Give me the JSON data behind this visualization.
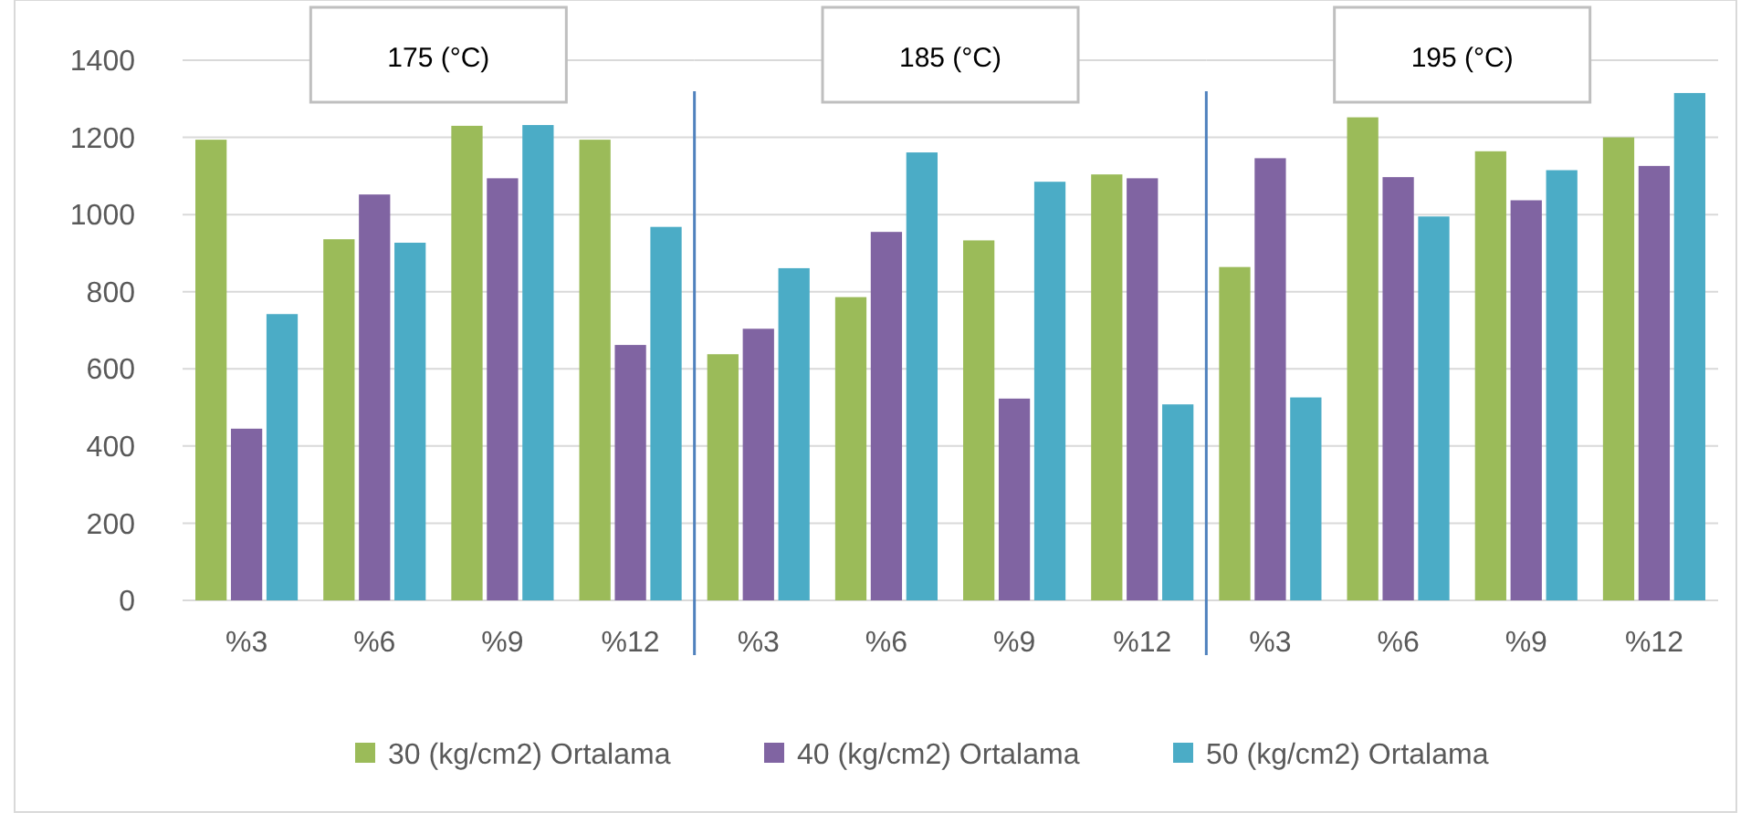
{
  "chart_data": {
    "type": "bar",
    "categories": [
      "%3",
      "%6",
      "%9",
      "%12",
      "%3",
      "%6",
      "%9",
      "%12",
      "%3",
      "%6",
      "%9",
      "%12"
    ],
    "series": [
      {
        "name": "30 (kg/cm2) Ortalama",
        "color": "#9bbb59",
        "values": [
          1194,
          936,
          1230,
          1194,
          638,
          786,
          933,
          1104,
          864,
          1252,
          1164,
          1200
        ]
      },
      {
        "name": "40 (kg/cm2) Ortalama",
        "color": "#8064a2",
        "values": [
          445,
          1052,
          1094,
          662,
          704,
          955,
          523,
          1094,
          1146,
          1097,
          1037,
          1126
        ]
      },
      {
        "name": "50 (kg/cm2) Ortalama",
        "color": "#4bacc6",
        "values": [
          742,
          927,
          1232,
          968,
          861,
          1161,
          1085,
          508,
          526,
          995,
          1115,
          1315
        ]
      }
    ],
    "annotations": [
      "175 (°C)",
      "185 (°C)",
      "195 (°C)"
    ],
    "ylim": [
      0,
      1400
    ],
    "yticks": [
      0,
      200,
      400,
      600,
      800,
      1000,
      1200,
      1400
    ],
    "grid": "y",
    "legend": "bottom"
  }
}
